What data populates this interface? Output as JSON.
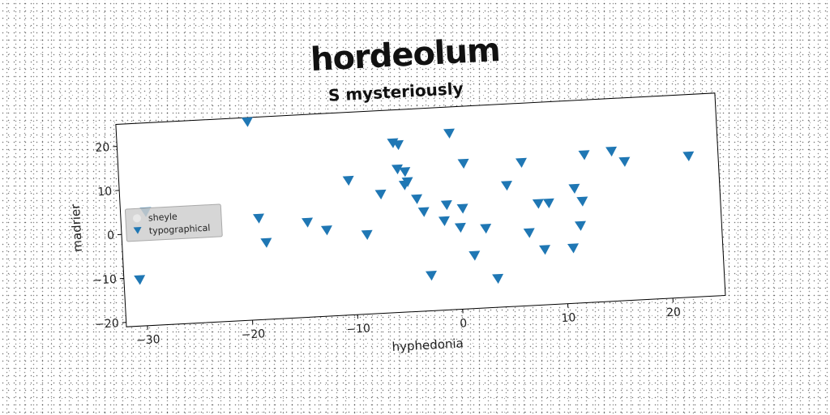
{
  "chart_data": {
    "type": "scatter",
    "title": "hordeolum",
    "subtitle": "S mysteriously",
    "xlabel": "hyphedonia",
    "ylabel": "madrier",
    "xlim": [
      -32,
      25
    ],
    "ylim": [
      -21,
      25
    ],
    "xticks": [
      -30,
      -20,
      -10,
      0,
      10,
      20
    ],
    "yticks": [
      -20,
      -10,
      0,
      10,
      20
    ],
    "grid": false,
    "legend_position": "center-left",
    "series": [
      {
        "name": "sheyle",
        "marker": "circle",
        "color": "#e8e8e8",
        "points": []
      },
      {
        "name": "typographical",
        "marker": "triangle-down",
        "color": "#1f77b4",
        "points": [
          {
            "x": -19.5,
            "y": 24.0
          },
          {
            "x": -29.6,
            "y": 4.8
          },
          {
            "x": -30.5,
            "y": -10.5
          },
          {
            "x": -18.9,
            "y": 2.0
          },
          {
            "x": -18.3,
            "y": -3.6
          },
          {
            "x": -14.3,
            "y": 0.5
          },
          {
            "x": -12.5,
            "y": -1.5
          },
          {
            "x": -10.2,
            "y": 9.5
          },
          {
            "x": -8.7,
            "y": -3.0
          },
          {
            "x": -7.2,
            "y": 6.0
          },
          {
            "x": -5.8,
            "y": 17.5
          },
          {
            "x": -5.3,
            "y": 17.0
          },
          {
            "x": -5.5,
            "y": 11.5
          },
          {
            "x": -4.8,
            "y": 10.8
          },
          {
            "x": -4.6,
            "y": 8.5
          },
          {
            "x": -4.9,
            "y": 7.8
          },
          {
            "x": -3.8,
            "y": 4.5
          },
          {
            "x": -3.2,
            "y": 1.5
          },
          {
            "x": -1.3,
            "y": -0.8
          },
          {
            "x": -1.0,
            "y": 2.8
          },
          {
            "x": -2.8,
            "y": -13.0
          },
          {
            "x": -0.4,
            "y": 19.0
          },
          {
            "x": 0.8,
            "y": 12.0
          },
          {
            "x": 0.5,
            "y": 1.8
          },
          {
            "x": 0.2,
            "y": -2.5
          },
          {
            "x": 1.4,
            "y": -9.0
          },
          {
            "x": 2.6,
            "y": -3.0
          },
          {
            "x": 3.5,
            "y": -14.5
          },
          {
            "x": 4.8,
            "y": 6.5
          },
          {
            "x": 6.3,
            "y": 11.5
          },
          {
            "x": 6.7,
            "y": -4.5
          },
          {
            "x": 7.7,
            "y": 2.0
          },
          {
            "x": 8.1,
            "y": -8.5
          },
          {
            "x": 8.7,
            "y": 2.0
          },
          {
            "x": 10.8,
            "y": -8.5
          },
          {
            "x": 11.2,
            "y": 5.0
          },
          {
            "x": 11.6,
            "y": -3.5
          },
          {
            "x": 11.9,
            "y": 2.0
          },
          {
            "x": 12.3,
            "y": 12.5
          },
          {
            "x": 14.9,
            "y": 13.0
          },
          {
            "x": 16.1,
            "y": 10.5
          },
          {
            "x": 22.2,
            "y": 11.0
          }
        ]
      }
    ]
  }
}
